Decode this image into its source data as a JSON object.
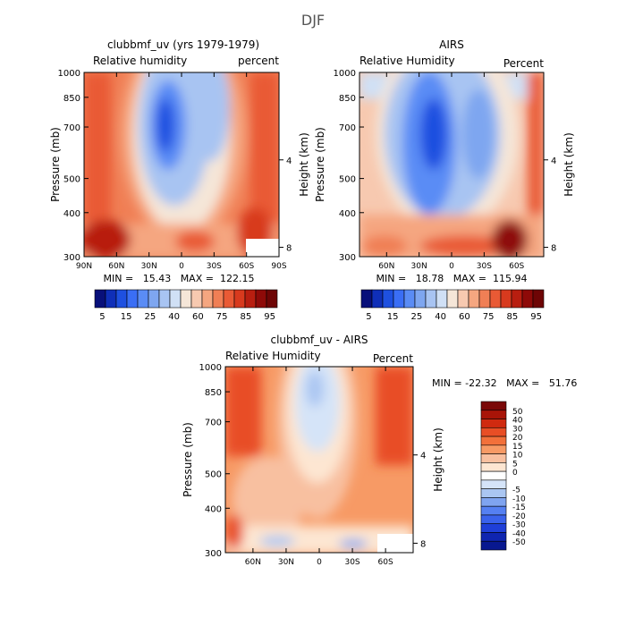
{
  "figure": {
    "title": "DJF"
  },
  "panels": [
    {
      "title": "clubbmf_uv (yrs 1979-1979)",
      "left_label": "Relative humidity",
      "right_label": "percent",
      "ylabel": "Pressure (mb)",
      "ylabel2": "Height (km)",
      "xtick_labels": [
        "90N",
        "60N",
        "30N",
        "0",
        "30S",
        "60S",
        "90S"
      ],
      "stats": "MIN =   15.43   MAX =  122.15"
    },
    {
      "title": "AIRS",
      "left_label": "Relative Humidity",
      "right_label": "Percent",
      "ylabel": "Pressure (mb)",
      "ylabel2": "Height (km)",
      "xtick_labels": [
        "60N",
        "30N",
        "0",
        "30S",
        "60S"
      ],
      "stats": "MIN =   18.78   MAX =  115.94"
    },
    {
      "title": "clubbmf_uv - AIRS",
      "left_label": "Relative Humidity",
      "right_label": "Percent",
      "ylabel": "Pressure (mb)",
      "ylabel2": "Height (km)",
      "xtick_labels": [
        "60N",
        "30N",
        "0",
        "30S",
        "60S"
      ],
      "stats": "MIN = -22.32   MAX =   51.76"
    }
  ],
  "colorbars": {
    "abs": {
      "labels": [
        "5",
        "15",
        "25",
        "40",
        "60",
        "75",
        "85",
        "95"
      ],
      "colors": [
        "#08107a",
        "#0f2fb8",
        "#1e50e0",
        "#3a6ef5",
        "#5a8cf5",
        "#7ea6f0",
        "#a8c4f2",
        "#d0e0f5",
        "#f5e6d8",
        "#f7c9b0",
        "#f5a680",
        "#f07f55",
        "#e95a35",
        "#d83a1e",
        "#b81e10",
        "#8e0a08",
        "#6e0505"
      ]
    },
    "diff": {
      "labels": [
        "50",
        "40",
        "30",
        "20",
        "15",
        "10",
        "5",
        "0",
        "-5",
        "-10",
        "-15",
        "-20",
        "-30",
        "-40",
        "-50"
      ],
      "colors": [
        "#7a0808",
        "#a81408",
        "#d02a10",
        "#e84e25",
        "#f2703a",
        "#f79a65",
        "#f8c0a0",
        "#fde6d2",
        "#ffffff",
        "#d5e4f8",
        "#aac6f2",
        "#7fa4f0",
        "#5580f2",
        "#3a62ec",
        "#1f3fd8",
        "#0f25b0",
        "#081890"
      ]
    }
  },
  "chart_data": [
    {
      "type": "heatmap",
      "title": "clubbmf_uv (yrs 1979-1979)",
      "xlabel": "",
      "ylabel": "Pressure (mb)",
      "y2label": "Height (km)",
      "x_ticks": [
        "90N",
        "60N",
        "30N",
        "0",
        "30S",
        "60S",
        "90S"
      ],
      "xlim": [
        90,
        -90
      ],
      "y_ticks": [
        300,
        400,
        500,
        700,
        850,
        1000
      ],
      "ylim": [
        1000,
        300
      ],
      "y_scale": "log",
      "y2_ticks": [
        4,
        8
      ],
      "units": "percent",
      "min": 15.43,
      "max": 122.15,
      "colorbar_levels": [
        5,
        10,
        15,
        20,
        25,
        30,
        40,
        50,
        60,
        65,
        70,
        75,
        80,
        85,
        90,
        95
      ]
    },
    {
      "type": "heatmap",
      "title": "AIRS",
      "ylabel": "Pressure (mb)",
      "y2label": "Height (km)",
      "x_ticks": [
        "60N",
        "30N",
        "0",
        "30S",
        "60S"
      ],
      "xlim": [
        85,
        -85
      ],
      "y_ticks": [
        300,
        400,
        500,
        700,
        850,
        1000
      ],
      "ylim": [
        1000,
        300
      ],
      "y_scale": "log",
      "y2_ticks": [
        4,
        8
      ],
      "units": "Percent",
      "min": 18.78,
      "max": 115.94
    },
    {
      "type": "heatmap",
      "title": "clubbmf_uv - AIRS",
      "ylabel": "Pressure (mb)",
      "y2label": "Height (km)",
      "x_ticks": [
        "60N",
        "30N",
        "0",
        "30S",
        "60S"
      ],
      "xlim": [
        85,
        -85
      ],
      "y_ticks": [
        300,
        400,
        500,
        700,
        850,
        1000
      ],
      "ylim": [
        1000,
        300
      ],
      "y_scale": "log",
      "y2_ticks": [
        4,
        8
      ],
      "units": "Percent",
      "min": -22.32,
      "max": 51.76,
      "colorbar_levels": [
        -50,
        -40,
        -30,
        -20,
        -15,
        -10,
        -5,
        0,
        5,
        10,
        15,
        20,
        30,
        40,
        50
      ]
    }
  ]
}
